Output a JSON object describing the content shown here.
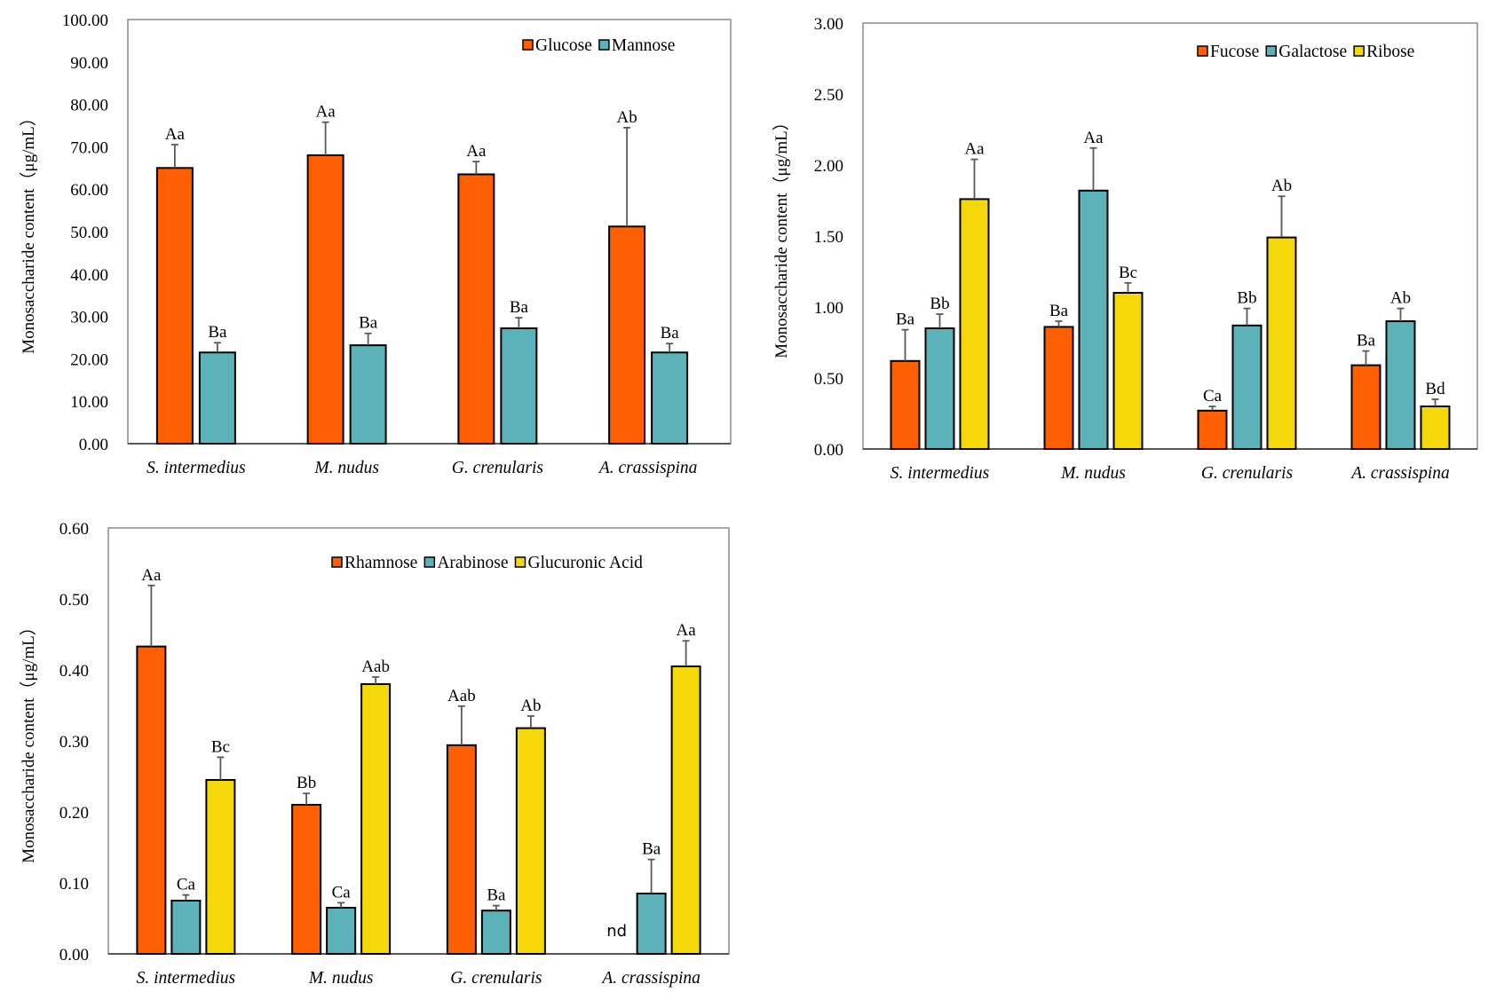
{
  "colors": {
    "orange": "#FF5F00",
    "teal": "#5BB2B8",
    "yellow": "#F5D80A",
    "error_bar": "#595959",
    "axis": "#595959"
  },
  "chart_data": [
    {
      "type": "bar",
      "ylabel": "Monosaccharide content（μg/mL）",
      "ylim": [
        0,
        100
      ],
      "yticks": [
        "0.00",
        "10.00",
        "20.00",
        "30.00",
        "40.00",
        "50.00",
        "60.00",
        "70.00",
        "80.00",
        "90.00",
        "100.00"
      ],
      "ytick_values": [
        0,
        10,
        20,
        30,
        40,
        50,
        60,
        70,
        80,
        90,
        100
      ],
      "categories": [
        "S. intermedius",
        "M. nudus",
        "G. crenularis",
        "A. crassispina"
      ],
      "legend": "top-right",
      "grid": false,
      "series": [
        {
          "name": "Glucose",
          "color": "#FF5F00",
          "values": [
            65.0,
            68.0,
            63.5,
            51.2
          ],
          "error_upper": [
            70.5,
            75.8,
            66.5,
            74.5
          ],
          "labels": [
            "Aa",
            "Aa",
            "Aa",
            "Ab"
          ]
        },
        {
          "name": "Mannose",
          "color": "#5BB2B8",
          "values": [
            21.5,
            23.2,
            27.2,
            21.5
          ],
          "error_upper": [
            23.8,
            26.0,
            29.7,
            23.6
          ],
          "labels": [
            "Ba",
            "Ba",
            "Ba",
            "Ba"
          ]
        }
      ]
    },
    {
      "type": "bar",
      "ylabel": "Monosaccharide content（μg/mL）",
      "ylim": [
        0,
        3
      ],
      "yticks": [
        "0.00",
        "0.50",
        "1.00",
        "1.50",
        "2.00",
        "2.50",
        "3.00"
      ],
      "ytick_values": [
        0,
        0.5,
        1,
        1.5,
        2,
        2.5,
        3
      ],
      "categories": [
        "S. intermedius",
        "M. nudus",
        "G. crenularis",
        "A. crassispina"
      ],
      "legend": "top-right",
      "grid": false,
      "series": [
        {
          "name": "Fucose",
          "color": "#FF5F00",
          "values": [
            0.62,
            0.86,
            0.27,
            0.59
          ],
          "error_upper": [
            0.84,
            0.9,
            0.3,
            0.69
          ],
          "labels": [
            "Ba",
            "Ba",
            "Ca",
            "Ba"
          ]
        },
        {
          "name": "Galactose",
          "color": "#5BB2B8",
          "values": [
            0.85,
            1.82,
            0.87,
            0.9
          ],
          "error_upper": [
            0.95,
            2.12,
            0.99,
            0.99
          ],
          "labels": [
            "Bb",
            "Aa",
            "Bb",
            "Ab"
          ]
        },
        {
          "name": "Ribose",
          "color": "#F5D80A",
          "values": [
            1.76,
            1.1,
            1.49,
            0.3
          ],
          "error_upper": [
            2.04,
            1.17,
            1.78,
            0.35
          ],
          "labels": [
            "Aa",
            "Bc",
            "Ab",
            "Bd"
          ]
        }
      ]
    },
    {
      "type": "bar",
      "ylabel": "Monosaccharide content（μg/mL）",
      "ylim": [
        0,
        0.6
      ],
      "yticks": [
        "0.00",
        "0.10",
        "0.20",
        "0.30",
        "0.40",
        "0.50",
        "0.60"
      ],
      "ytick_values": [
        0,
        0.1,
        0.2,
        0.3,
        0.4,
        0.5,
        0.6
      ],
      "categories": [
        "S. intermedius",
        "M. nudus",
        "G. crenularis",
        "A. crassispina"
      ],
      "legend": "top-right",
      "grid": false,
      "series": [
        {
          "name": "Rhamnose",
          "color": "#FF5F00",
          "values": [
            0.433,
            0.21,
            0.294,
            null
          ],
          "error_upper": [
            0.519,
            0.226,
            0.349,
            null
          ],
          "labels": [
            "Aa",
            "Bb",
            "Aab",
            "nd"
          ]
        },
        {
          "name": "Arabinose",
          "color": "#5BB2B8",
          "values": [
            0.075,
            0.065,
            0.061,
            0.085
          ],
          "error_upper": [
            0.083,
            0.072,
            0.068,
            0.133
          ],
          "labels": [
            "Ca",
            "Ca",
            "Ba",
            "Ba"
          ]
        },
        {
          "name": "Glucuronic Acid",
          "color": "#F5D80A",
          "values": [
            0.245,
            0.38,
            0.318,
            0.405
          ],
          "error_upper": [
            0.277,
            0.39,
            0.335,
            0.441
          ],
          "labels": [
            "Bc",
            "Aab",
            "Ab",
            "Aa"
          ]
        }
      ]
    }
  ]
}
